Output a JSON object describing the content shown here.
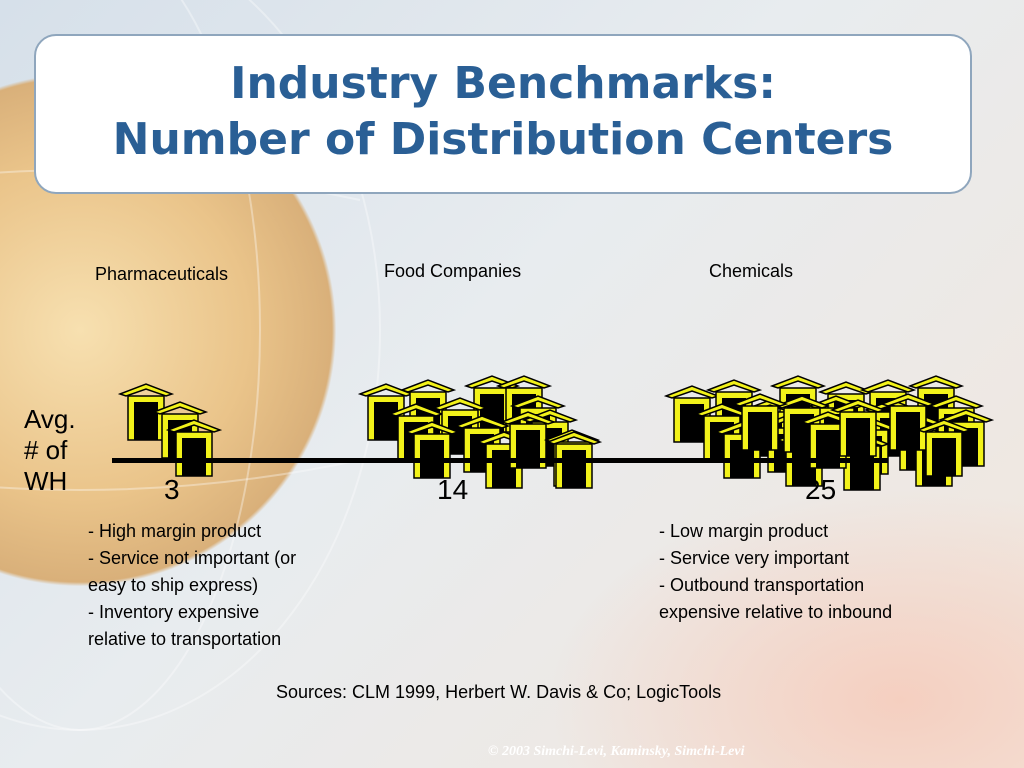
{
  "slide": {
    "title_line1": "Industry Benchmarks:",
    "title_line2": "Number of Distribution Centers",
    "y_label": [
      "Avg.",
      "# of",
      "WH"
    ],
    "categories": [
      {
        "label": "Pharmaceuticals",
        "value": "3",
        "warehouse_count": 3
      },
      {
        "label": "Food Companies",
        "value": "14",
        "warehouse_count": 14
      },
      {
        "label": "Chemicals",
        "value": "25",
        "warehouse_count": 25
      }
    ],
    "notes_left": [
      "- High margin product",
      "- Service not important (or",
      "easy to ship express)",
      "- Inventory expensive",
      "relative to transportation"
    ],
    "notes_right": [
      "- Low margin product",
      "- Service very important",
      "- Outbound transportation",
      "expensive relative to inbound"
    ],
    "source": "Sources: CLM 1999, Herbert W. Davis & Co; LogicTools",
    "copyright": "© 2003 Simchi-Levi, Kaminsky, Simchi-Levi"
  },
  "colors": {
    "title": "#2a5f95",
    "roof": "#f2f21a",
    "axis": "#000000"
  },
  "icons": {
    "warehouse": "warehouse-icon"
  }
}
